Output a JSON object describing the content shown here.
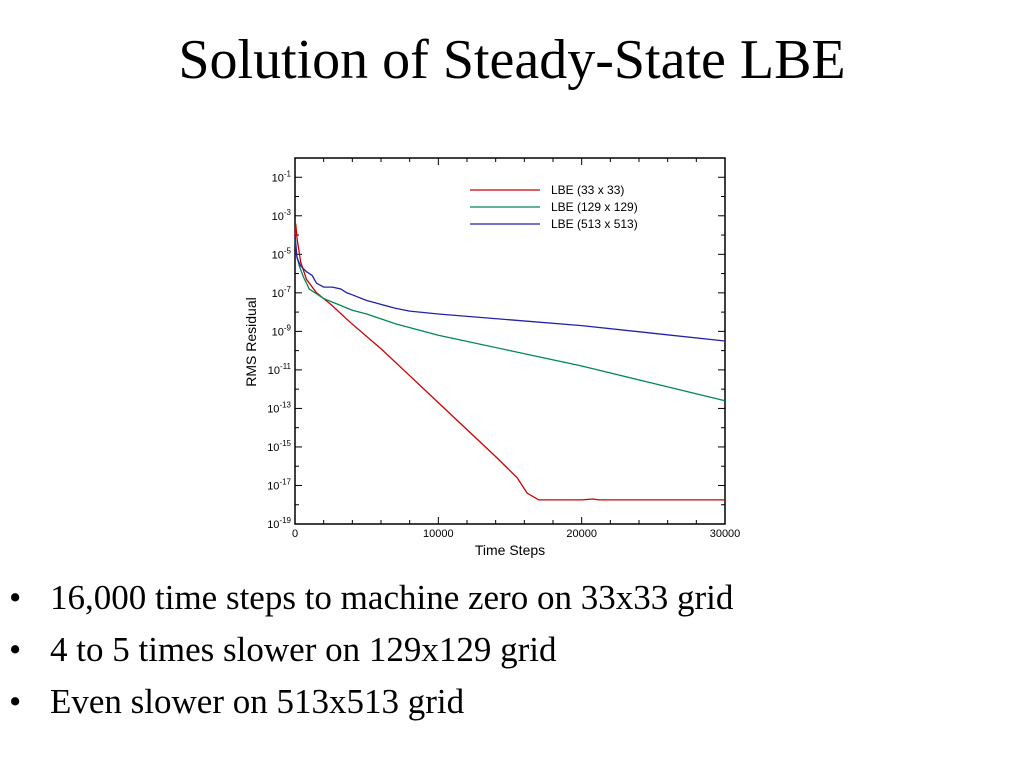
{
  "slide": {
    "title": "Solution of Steady-State LBE",
    "bullet_marker": "•",
    "bullets": [
      "16,000 time steps to machine zero on 33x33 grid",
      "4 to 5 times slower on 129x129 grid",
      "Even slower on 513x513 grid"
    ]
  },
  "chart_data": {
    "type": "line",
    "xlabel": "Time Steps",
    "ylabel": "RMS Residual",
    "xlim": [
      0,
      30000
    ],
    "x_ticks": [
      0,
      10000,
      20000,
      30000
    ],
    "y_scale": "log",
    "y_exponent_lim": [
      -19,
      0
    ],
    "y_tick_base": "10",
    "y_tick_exponents": [
      -1,
      -3,
      -5,
      -7,
      -9,
      -11,
      -13,
      -15,
      -17,
      -19
    ],
    "grid": false,
    "legend_position": "top-right",
    "series": [
      {
        "name": "LBE (33 x 33)",
        "color": "#cc0000",
        "points": [
          [
            0,
            -4.0
          ],
          [
            50,
            -3.4
          ],
          [
            150,
            -4.2
          ],
          [
            400,
            -5.4
          ],
          [
            800,
            -6.3
          ],
          [
            1500,
            -7.0
          ],
          [
            2500,
            -7.6
          ],
          [
            3800,
            -8.5
          ],
          [
            6000,
            -9.9
          ],
          [
            8000,
            -11.3
          ],
          [
            10000,
            -12.7
          ],
          [
            12000,
            -14.1
          ],
          [
            14000,
            -15.5
          ],
          [
            15500,
            -16.6
          ],
          [
            16200,
            -17.4
          ],
          [
            17000,
            -17.75
          ],
          [
            20000,
            -17.75
          ],
          [
            20800,
            -17.7
          ],
          [
            21200,
            -17.75
          ],
          [
            30000,
            -17.75
          ]
        ]
      },
      {
        "name": "LBE (129 x 129)",
        "color": "#008855",
        "points": [
          [
            0,
            -4.2
          ],
          [
            100,
            -5.0
          ],
          [
            300,
            -5.6
          ],
          [
            600,
            -6.2
          ],
          [
            1000,
            -6.8
          ],
          [
            2000,
            -7.3
          ],
          [
            3000,
            -7.6
          ],
          [
            4000,
            -7.9
          ],
          [
            5000,
            -8.1
          ],
          [
            7000,
            -8.6
          ],
          [
            10000,
            -9.2
          ],
          [
            15000,
            -10.0
          ],
          [
            20000,
            -10.8
          ],
          [
            25000,
            -11.7
          ],
          [
            30000,
            -12.6
          ]
        ]
      },
      {
        "name": "LBE (513 x 513)",
        "color": "#2222aa",
        "points": [
          [
            0,
            -4.0
          ],
          [
            150,
            -5.2
          ],
          [
            400,
            -5.6
          ],
          [
            800,
            -5.9
          ],
          [
            1200,
            -6.1
          ],
          [
            1500,
            -6.5
          ],
          [
            2000,
            -6.7
          ],
          [
            2600,
            -6.7
          ],
          [
            3200,
            -6.8
          ],
          [
            3600,
            -7.0
          ],
          [
            4000,
            -7.1
          ],
          [
            5000,
            -7.4
          ],
          [
            6000,
            -7.6
          ],
          [
            7000,
            -7.8
          ],
          [
            8000,
            -7.95
          ],
          [
            10000,
            -8.1
          ],
          [
            15000,
            -8.4
          ],
          [
            20000,
            -8.7
          ],
          [
            25000,
            -9.1
          ],
          [
            30000,
            -9.5
          ]
        ]
      }
    ]
  }
}
